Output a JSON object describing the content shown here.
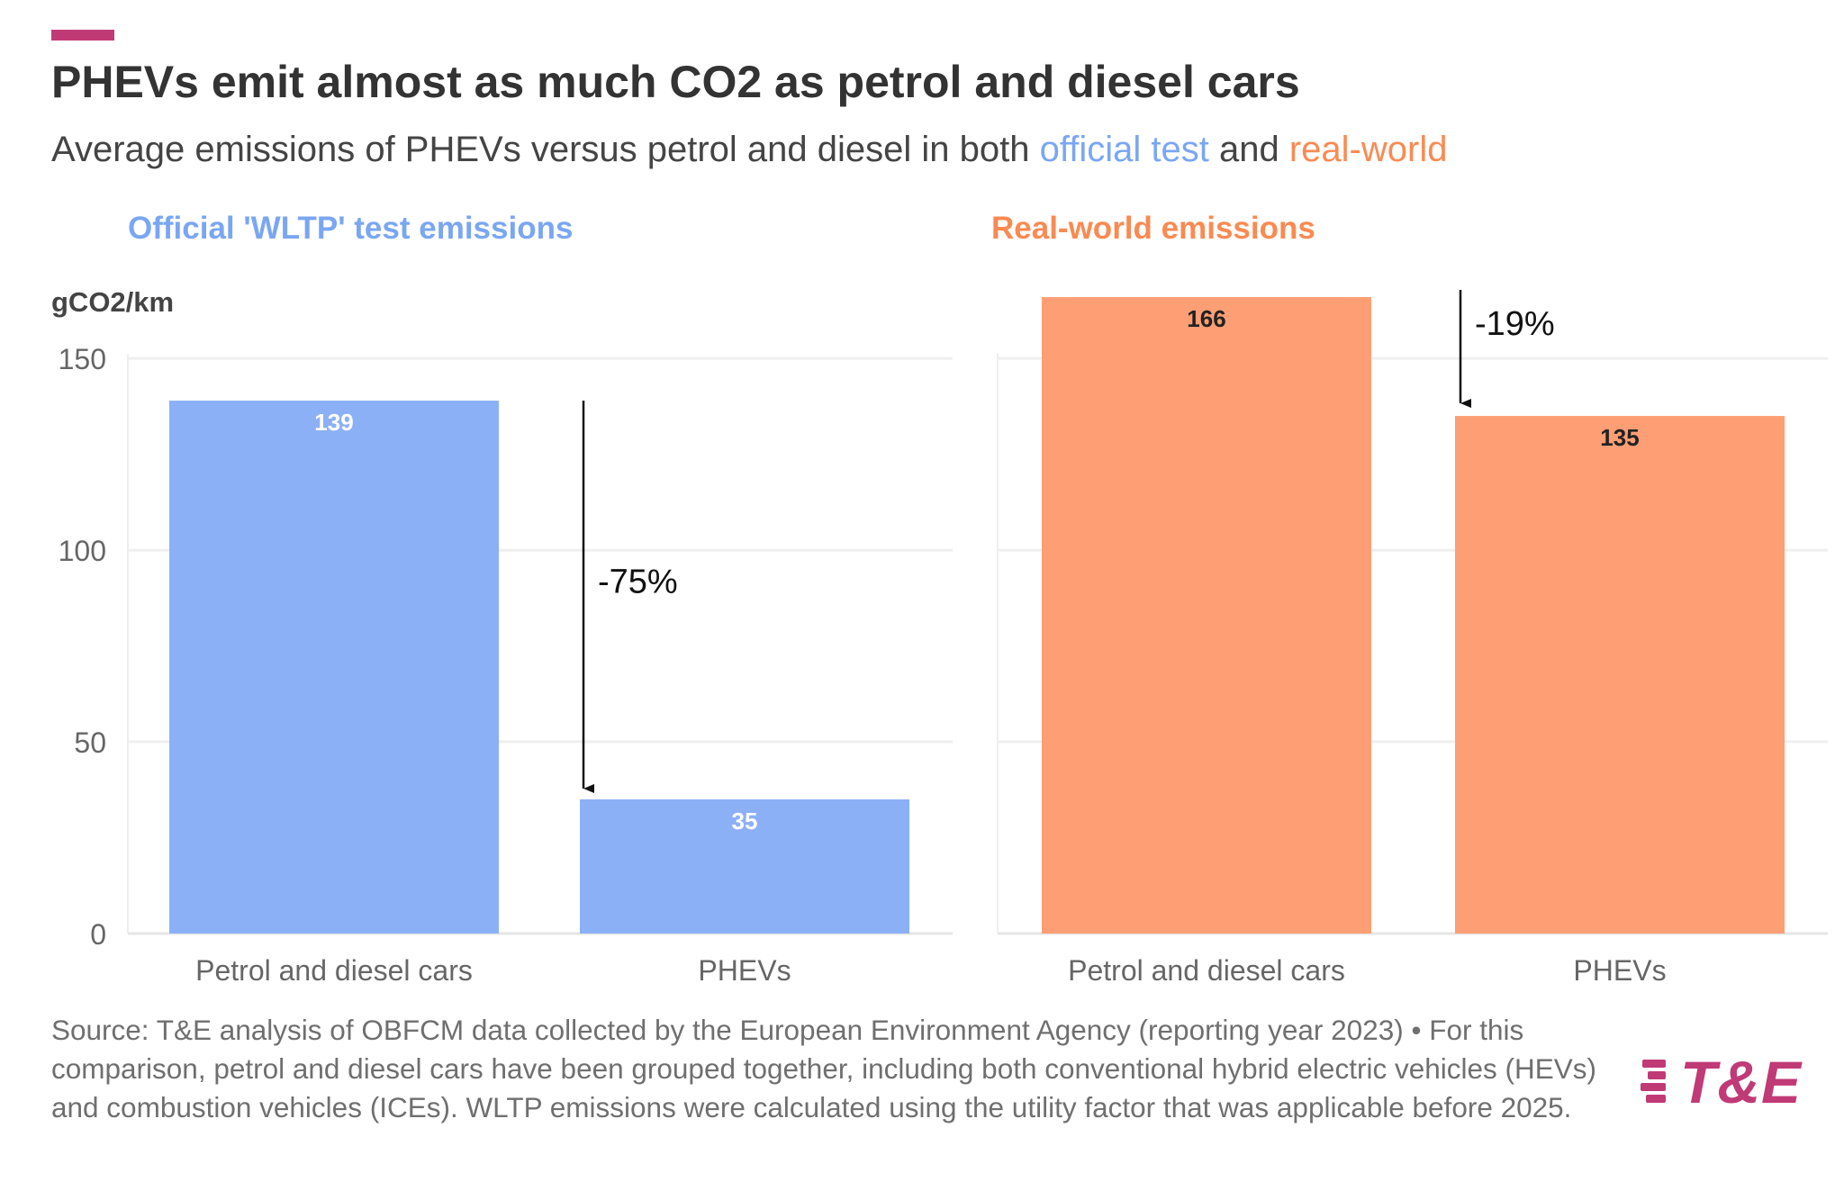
{
  "header": {
    "title": "PHEVs emit almost as much CO2 as petrol and diesel cars",
    "subtitle_prefix": "Average emissions of PHEVs versus petrol and diesel in both ",
    "subtitle_official": "official test",
    "subtitle_and": " and ",
    "subtitle_real": "real-world"
  },
  "unit_label": "gCO2/km",
  "chart_data": [
    {
      "type": "bar",
      "title": "Official 'WLTP' test emissions",
      "color": "#8cb0f5",
      "label_color": "#ffffff",
      "categories": [
        "Petrol and diesel cars",
        "PHEVs"
      ],
      "values": [
        139,
        35
      ],
      "ylim": [
        0,
        170
      ],
      "yticks": [
        0,
        50,
        100,
        150
      ],
      "grid": true,
      "annotation": {
        "text": "-75%",
        "from": 139,
        "to": 35
      }
    },
    {
      "type": "bar",
      "title": "Real-world emissions",
      "color": "#fd9e74",
      "label_color": "#222222",
      "categories": [
        "Petrol and diesel cars",
        "PHEVs"
      ],
      "values": [
        166,
        135
      ],
      "ylim": [
        0,
        170
      ],
      "yticks": [
        0,
        50,
        100,
        150
      ],
      "grid": true,
      "annotation": {
        "text": "-19%",
        "from": 166,
        "to": 135
      }
    }
  ],
  "colors": {
    "accent": "#c03a76",
    "official": "#7aa6f3",
    "real_world": "#fa8a52"
  },
  "source_text": "Source: T&E analysis of OBFCM data collected by the European Environment Agency (reporting year 2023) • For this comparison, petrol and diesel cars have been grouped together, including both conventional hybrid electric vehicles (HEVs) and combustion vehicles (ICEs). WLTP emissions were calculated using the utility factor that was applicable before 2025.",
  "logo": {
    "text": "T&E"
  }
}
